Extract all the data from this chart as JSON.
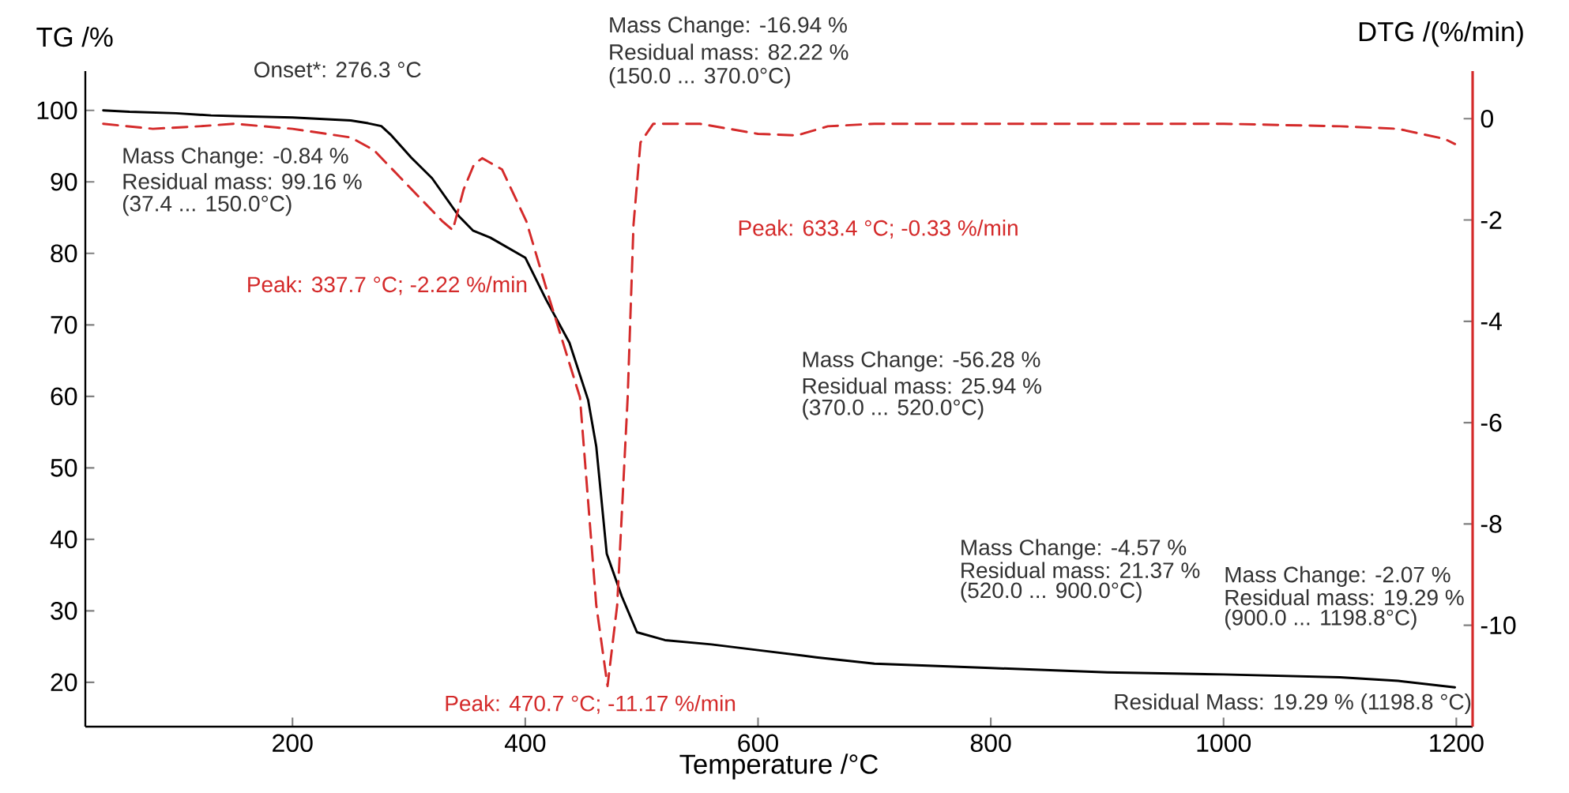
{
  "chart_data": {
    "type": "line",
    "xlabel": "Temperature /°C",
    "ylabel": "TG /%",
    "y2label": "DTG /(%/min)",
    "xlim": [
      22,
      1214
    ],
    "xticks": [
      200,
      400,
      600,
      800,
      1000,
      1200
    ],
    "ylim": [
      13.8,
      105.5
    ],
    "yticks": [
      20,
      30,
      40,
      50,
      60,
      70,
      80,
      90,
      100
    ],
    "y2lim": [
      -12,
      0.94
    ],
    "y2ticks": [
      -10,
      -8,
      -6,
      -4,
      -2,
      0
    ],
    "grid": false,
    "marker": "none",
    "series": [
      {
        "color": "#000000",
        "line_style": "solid",
        "x": [
          37.4,
          60,
          100,
          130,
          150,
          200,
          250,
          265,
          276.3,
          285,
          302,
          320,
          343,
          355,
          370,
          400,
          418,
          438,
          454,
          461,
          470,
          483,
          496,
          520,
          560,
          600,
          650,
          700,
          800,
          900,
          1000,
          1100,
          1150,
          1198.8
        ],
        "values": [
          100,
          99.8,
          99.6,
          99.3,
          99.2,
          99.0,
          98.6,
          98.2,
          97.8,
          96.5,
          93.4,
          90.5,
          85.2,
          83.2,
          82.2,
          79.4,
          73.5,
          67.5,
          59.5,
          53,
          38,
          32,
          27,
          25.9,
          25.3,
          24.5,
          23.5,
          22.6,
          22.0,
          21.4,
          21.1,
          20.7,
          20.2,
          19.3
        ]
      },
      {
        "color": "#d42a2a",
        "line_style": "dashed",
        "axis": "y2",
        "x": [
          37.4,
          80,
          120,
          150,
          200,
          250,
          270,
          290,
          311,
          329,
          337.7,
          347,
          356,
          363,
          380,
          401,
          420,
          447,
          461,
          470.7,
          479,
          488,
          493,
          499,
          510,
          550,
          600,
          633.4,
          660,
          700,
          800,
          900,
          1000,
          1100,
          1150,
          1190,
          1198.8
        ],
        "values": [
          -0.1,
          -0.2,
          -0.15,
          -0.1,
          -0.2,
          -0.37,
          -0.62,
          -1.1,
          -1.6,
          -2.03,
          -2.2,
          -1.4,
          -0.9,
          -0.78,
          -1.0,
          -2.03,
          -3.5,
          -5.5,
          -9.6,
          -11.2,
          -9.6,
          -5.5,
          -2.1,
          -0.47,
          -0.1,
          -0.1,
          -0.3,
          -0.33,
          -0.15,
          -0.1,
          -0.1,
          -0.1,
          -0.1,
          -0.15,
          -0.2,
          -0.4,
          -0.5
        ]
      }
    ],
    "annotations": [
      "Onset*: 276.3 °C",
      "Mass Change:   -16.94 %",
      "Residual mass:  82.22 %",
      "(150.0 ... 370.0°C)",
      "Mass Change:   -0.84 %",
      "Residual mass: 99.16 %",
      "(37.4 ... 150.0°C)",
      "Peak: 337.7 °C; -2.22 %/min",
      "Peak: 633.4 °C; -0.33 %/min",
      "Mass Change:   -56.28 %",
      "Residual mass:  25.94 %",
      "(370.0 ... 520.0°C)",
      "Mass Change:   -4.57 %",
      "Residual mass: 21.37 %",
      "(520.0 ... 900.0°C)",
      "Mass Change:   -2.07 %",
      "Residual mass: 19.29 %",
      "(900.0 ... 1198.8°C)",
      "Peak: 470.7 °C; -11.17 %/min",
      "Residual Mass: 19.29 % (1198.8 °C)"
    ]
  }
}
